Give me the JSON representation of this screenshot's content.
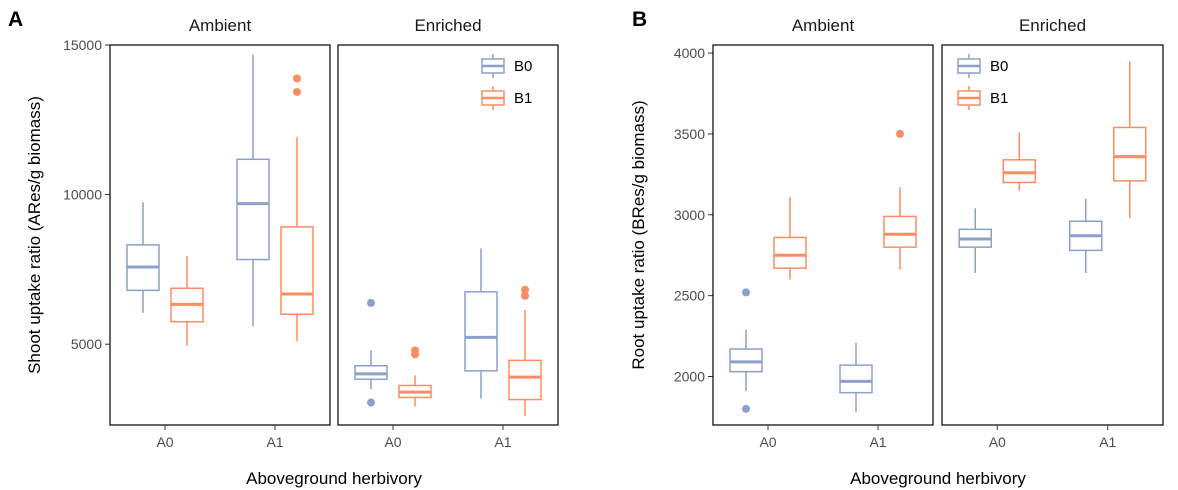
{
  "colors": {
    "B0": "#8da0cb",
    "B1": "#fc8d62"
  },
  "chart_data": [
    {
      "type": "boxplot",
      "panel_label": "A",
      "ylabel": "Shoot uptake ratio (ARes/g biomass)",
      "xlabel": "Aboveground herbivory",
      "ylim": [
        2300,
        15000
      ],
      "yticks": [
        5000,
        10000,
        15000
      ],
      "grid": false,
      "legend": {
        "entries": [
          "B0",
          "B1"
        ],
        "placement": "top-right"
      },
      "facets": [
        {
          "label": "Ambient",
          "categories": [
            "A0",
            "A1"
          ],
          "boxes": [
            {
              "x": "A0",
              "group": "B0",
              "whisker_low": 6050,
              "q1": 6800,
              "median": 7580,
              "q3": 8320,
              "whisker_high": 9750,
              "outliers": []
            },
            {
              "x": "A0",
              "group": "B1",
              "whisker_low": 4950,
              "q1": 5750,
              "median": 6330,
              "q3": 6870,
              "whisker_high": 7950,
              "outliers": []
            },
            {
              "x": "A1",
              "group": "B0",
              "whisker_low": 5600,
              "q1": 7830,
              "median": 9700,
              "q3": 11180,
              "whisker_high": 14680,
              "outliers": []
            },
            {
              "x": "A1",
              "group": "B1",
              "whisker_low": 5100,
              "q1": 6000,
              "median": 6680,
              "q3": 8920,
              "whisker_high": 11920,
              "outliers": [
                13430,
                13880
              ]
            }
          ]
        },
        {
          "label": "Enriched",
          "categories": [
            "A0",
            "A1"
          ],
          "boxes": [
            {
              "x": "A0",
              "group": "B0",
              "whisker_low": 3500,
              "q1": 3830,
              "median": 4010,
              "q3": 4280,
              "whisker_high": 4800,
              "outliers": [
                6380,
                3050
              ]
            },
            {
              "x": "A0",
              "group": "B1",
              "whisker_low": 2920,
              "q1": 3220,
              "median": 3400,
              "q3": 3620,
              "whisker_high": 3960,
              "outliers": [
                4660,
                4790
              ]
            },
            {
              "x": "A1",
              "group": "B0",
              "whisker_low": 3180,
              "q1": 4110,
              "median": 5230,
              "q3": 6750,
              "whisker_high": 8200,
              "outliers": []
            },
            {
              "x": "A1",
              "group": "B1",
              "whisker_low": 2600,
              "q1": 3150,
              "median": 3900,
              "q3": 4460,
              "whisker_high": 6150,
              "outliers": [
                6620,
                6820
              ]
            }
          ]
        }
      ]
    },
    {
      "type": "boxplot",
      "panel_label": "B",
      "ylabel": "Root uptake ratio (BRes/g biomass)",
      "xlabel": "Aboveground herbivory",
      "ylim": [
        1700,
        4050
      ],
      "yticks": [
        2000,
        2500,
        3000,
        3500,
        4000
      ],
      "grid": false,
      "legend": {
        "entries": [
          "B0",
          "B1"
        ],
        "placement": "top-left"
      },
      "facets": [
        {
          "label": "Ambient",
          "categories": [
            "A0",
            "A1"
          ],
          "boxes": [
            {
              "x": "A0",
              "group": "B0",
              "whisker_low": 1910,
              "q1": 2030,
              "median": 2090,
              "q3": 2170,
              "whisker_high": 2290,
              "outliers": [
                2520,
                1800
              ]
            },
            {
              "x": "A0",
              "group": "B1",
              "whisker_low": 2600,
              "q1": 2670,
              "median": 2750,
              "q3": 2860,
              "whisker_high": 3110,
              "outliers": []
            },
            {
              "x": "A1",
              "group": "B0",
              "whisker_low": 1780,
              "q1": 1900,
              "median": 1970,
              "q3": 2070,
              "whisker_high": 2210,
              "outliers": []
            },
            {
              "x": "A1",
              "group": "B1",
              "whisker_low": 2660,
              "q1": 2800,
              "median": 2880,
              "q3": 2990,
              "whisker_high": 3170,
              "outliers": [
                3500
              ]
            }
          ]
        },
        {
          "label": "Enriched",
          "categories": [
            "A0",
            "A1"
          ],
          "boxes": [
            {
              "x": "A0",
              "group": "B0",
              "whisker_low": 2640,
              "q1": 2800,
              "median": 2850,
              "q3": 2910,
              "whisker_high": 3040,
              "outliers": []
            },
            {
              "x": "A0",
              "group": "B1",
              "whisker_low": 3150,
              "q1": 3200,
              "median": 3260,
              "q3": 3340,
              "whisker_high": 3510,
              "outliers": []
            },
            {
              "x": "A1",
              "group": "B0",
              "whisker_low": 2640,
              "q1": 2780,
              "median": 2870,
              "q3": 2960,
              "whisker_high": 3100,
              "outliers": []
            },
            {
              "x": "A1",
              "group": "B1",
              "whisker_low": 2980,
              "q1": 3210,
              "median": 3360,
              "q3": 3540,
              "whisker_high": 3950,
              "outliers": []
            }
          ]
        }
      ]
    }
  ]
}
